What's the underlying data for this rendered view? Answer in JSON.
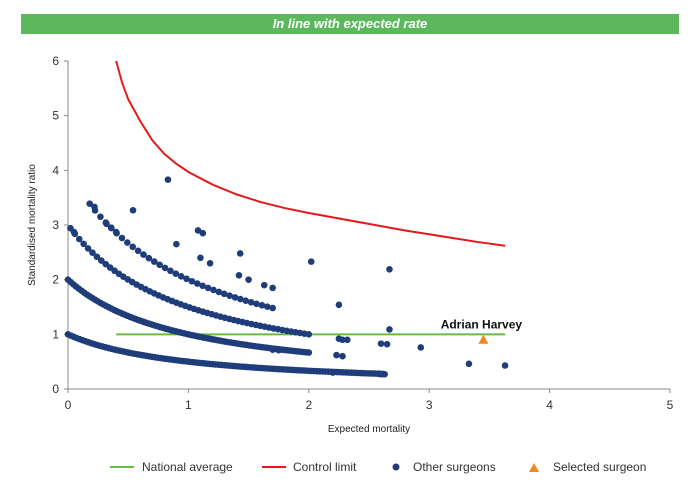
{
  "banner": {
    "text": "In line with expected rate",
    "color": "#5cb85c"
  },
  "chart_data": {
    "type": "scatter",
    "title": "",
    "xlabel": "Expected mortality",
    "ylabel": "Standardised mortality ratio",
    "xlim": [
      0,
      5
    ],
    "ylim": [
      0,
      6
    ],
    "xticks": [
      0,
      1,
      2,
      3,
      4,
      5
    ],
    "yticks": [
      0,
      1,
      2,
      3,
      4,
      5,
      6
    ],
    "grid": false,
    "legend_position": "bottom",
    "series": [
      {
        "name": "National average",
        "kind": "line",
        "color": "#66bb44",
        "points": [
          [
            0.4,
            1
          ],
          [
            3.63,
            1
          ]
        ]
      },
      {
        "name": "Control limit",
        "kind": "line",
        "color": "#e31a1c",
        "points": [
          [
            0.4,
            6.0
          ],
          [
            0.45,
            5.6
          ],
          [
            0.5,
            5.3
          ],
          [
            0.6,
            4.9
          ],
          [
            0.7,
            4.55
          ],
          [
            0.8,
            4.3
          ],
          [
            0.9,
            4.12
          ],
          [
            1.0,
            3.97
          ],
          [
            1.2,
            3.74
          ],
          [
            1.4,
            3.56
          ],
          [
            1.6,
            3.42
          ],
          [
            1.8,
            3.31
          ],
          [
            2.0,
            3.22
          ],
          [
            2.2,
            3.14
          ],
          [
            2.4,
            3.06
          ],
          [
            2.6,
            2.98
          ],
          [
            2.8,
            2.9
          ],
          [
            3.0,
            2.83
          ],
          [
            3.2,
            2.76
          ],
          [
            3.4,
            2.69
          ],
          [
            3.63,
            2.62
          ]
        ]
      },
      {
        "name": "Other surgeons",
        "kind": "scatter",
        "color": "#1f3d7a",
        "curves": [
          {
            "k": 0,
            "x_from": 0.0,
            "x_to": 2.62,
            "count": 110
          },
          {
            "k": 1,
            "x_from": 0.0,
            "x_to": 2.0,
            "count": 90
          },
          {
            "k": 2,
            "x_from": 0.02,
            "x_to": 2.0,
            "count": 55
          },
          {
            "k": 3,
            "x_from": 0.18,
            "x_to": 1.7,
            "count": 35
          }
        ],
        "points": [
          [
            0.05,
            2.87
          ],
          [
            0.22,
            3.33
          ],
          [
            0.32,
            3.02
          ],
          [
            0.36,
            2.95
          ],
          [
            0.4,
            2.87
          ],
          [
            0.54,
            3.27
          ],
          [
            0.83,
            3.83
          ],
          [
            0.9,
            2.65
          ],
          [
            1.08,
            2.9
          ],
          [
            1.12,
            2.85
          ],
          [
            1.1,
            2.4
          ],
          [
            1.18,
            2.3
          ],
          [
            1.43,
            2.48
          ],
          [
            1.42,
            2.08
          ],
          [
            1.5,
            2.0
          ],
          [
            1.63,
            1.9
          ],
          [
            1.7,
            1.85
          ],
          [
            2.02,
            2.33
          ],
          [
            2.67,
            2.19
          ],
          [
            2.25,
            1.54
          ],
          [
            2.25,
            0.92
          ],
          [
            2.28,
            0.9
          ],
          [
            2.32,
            0.9
          ],
          [
            2.23,
            0.62
          ],
          [
            2.28,
            0.6
          ],
          [
            2.2,
            0.3
          ],
          [
            2.6,
            0.83
          ],
          [
            2.65,
            0.82
          ],
          [
            2.67,
            1.09
          ],
          [
            2.93,
            0.76
          ],
          [
            3.33,
            0.46
          ],
          [
            3.63,
            0.43
          ],
          [
            2.58,
            0.28
          ],
          [
            2.6,
            0.27
          ],
          [
            2.63,
            0.27
          ],
          [
            1.7,
            0.72
          ],
          [
            1.75,
            0.71
          ]
        ]
      },
      {
        "name": "Selected surgeon",
        "kind": "scatter",
        "marker": "triangle",
        "color": "#f0891e",
        "points": [
          [
            3.45,
            0.9
          ]
        ]
      }
    ],
    "annotations": [
      {
        "text": "Adrian Harvey",
        "x": 3.45,
        "y": 1.07
      }
    ]
  }
}
